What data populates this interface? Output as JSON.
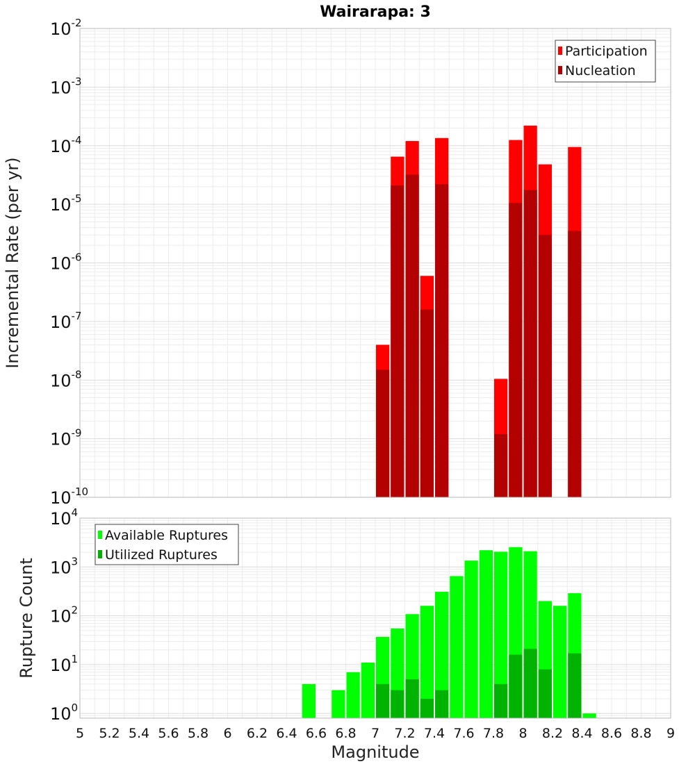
{
  "chart_data": [
    {
      "type": "bar",
      "title": "Wairarapa: 3",
      "xlabel": "",
      "ylabel": "Incremental Rate (per yr)",
      "yscale": "log",
      "ylim": [
        1e-10,
        0.01
      ],
      "xlim": [
        5,
        9
      ],
      "legend_position": "top-right",
      "grid": true,
      "series": [
        {
          "name": "Participation",
          "color": "#ff0000",
          "points": [
            {
              "x": 7.05,
              "y": 4e-08
            },
            {
              "x": 7.15,
              "y": 6.5e-05
            },
            {
              "x": 7.25,
              "y": 0.00012
            },
            {
              "x": 7.35,
              "y": 6e-07
            },
            {
              "x": 7.45,
              "y": 0.000135
            },
            {
              "x": 7.85,
              "y": 1.05e-08
            },
            {
              "x": 7.95,
              "y": 0.000125
            },
            {
              "x": 8.05,
              "y": 0.00022
            },
            {
              "x": 8.15,
              "y": 4.8e-05
            },
            {
              "x": 8.35,
              "y": 9.5e-05
            }
          ]
        },
        {
          "name": "Nucleation",
          "color": "#b30000",
          "points": [
            {
              "x": 7.05,
              "y": 1.5e-08
            },
            {
              "x": 7.15,
              "y": 2.1e-05
            },
            {
              "x": 7.25,
              "y": 3.2e-05
            },
            {
              "x": 7.35,
              "y": 1.6e-07
            },
            {
              "x": 7.45,
              "y": 2.2e-05
            },
            {
              "x": 7.85,
              "y": 1.2e-09
            },
            {
              "x": 7.95,
              "y": 1.05e-05
            },
            {
              "x": 8.05,
              "y": 1.75e-05
            },
            {
              "x": 8.15,
              "y": 3e-06
            },
            {
              "x": 8.35,
              "y": 3.5e-06
            }
          ]
        }
      ]
    },
    {
      "type": "bar",
      "title": "",
      "xlabel": "Magnitude",
      "ylabel": "Rupture Count",
      "yscale": "log",
      "ylim": [
        0.8,
        10000
      ],
      "xlim": [
        5,
        9
      ],
      "xticks": [
        "5",
        "5.2",
        "5.4",
        "5.6",
        "5.8",
        "6",
        "6.2",
        "6.4",
        "6.6",
        "6.8",
        "7",
        "7.2",
        "7.4",
        "7.6",
        "7.8",
        "8",
        "8.2",
        "8.4",
        "8.6",
        "8.8",
        "9"
      ],
      "legend_position": "top-left",
      "grid": true,
      "series": [
        {
          "name": "Available Ruptures",
          "color": "#00ff00",
          "points": [
            {
              "x": 6.55,
              "y": 4
            },
            {
              "x": 6.75,
              "y": 3
            },
            {
              "x": 6.85,
              "y": 7
            },
            {
              "x": 6.95,
              "y": 11
            },
            {
              "x": 7.05,
              "y": 37
            },
            {
              "x": 7.15,
              "y": 55
            },
            {
              "x": 7.25,
              "y": 108
            },
            {
              "x": 7.35,
              "y": 160
            },
            {
              "x": 7.45,
              "y": 310
            },
            {
              "x": 7.55,
              "y": 650
            },
            {
              "x": 7.65,
              "y": 1350
            },
            {
              "x": 7.75,
              "y": 2200
            },
            {
              "x": 7.85,
              "y": 2050
            },
            {
              "x": 7.95,
              "y": 2550
            },
            {
              "x": 8.05,
              "y": 2100
            },
            {
              "x": 8.15,
              "y": 200
            },
            {
              "x": 8.25,
              "y": 160
            },
            {
              "x": 8.35,
              "y": 290
            },
            {
              "x": 8.45,
              "y": 1
            }
          ]
        },
        {
          "name": "Utilized Ruptures",
          "color": "#00b300",
          "points": [
            {
              "x": 7.05,
              "y": 4
            },
            {
              "x": 7.15,
              "y": 3
            },
            {
              "x": 7.25,
              "y": 5
            },
            {
              "x": 7.35,
              "y": 2
            },
            {
              "x": 7.45,
              "y": 3
            },
            {
              "x": 7.85,
              "y": 4
            },
            {
              "x": 7.95,
              "y": 16
            },
            {
              "x": 8.05,
              "y": 21
            },
            {
              "x": 8.15,
              "y": 8
            },
            {
              "x": 8.35,
              "y": 17
            }
          ]
        }
      ]
    }
  ]
}
